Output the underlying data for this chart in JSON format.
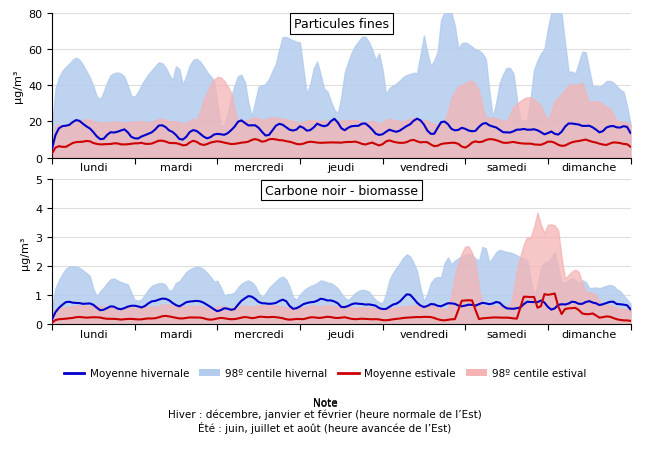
{
  "title1": "Particules fines",
  "title2": "Carbone noir - biomasse",
  "ylabel": "μg/m³",
  "days": [
    "lundi",
    "mardi",
    "mercredi",
    "jeudi",
    "vendredi",
    "samedi",
    "dimanche"
  ],
  "hours_per_day": 24,
  "total_hours": 168,
  "p1_ylim": [
    0,
    80
  ],
  "p1_yticks": [
    0,
    20,
    40,
    60,
    80
  ],
  "p2_ylim": [
    0,
    5
  ],
  "p2_yticks": [
    0,
    1,
    2,
    3,
    4,
    5
  ],
  "color_blue": "#0000cc",
  "color_red": "#cc0000",
  "color_blue_fill": "#b3ccee",
  "color_red_fill": "#f5b3b3",
  "legend_labels": [
    "Moyenne hivernale",
    "98º centile hivernal",
    "Moyenne estivale",
    "98º centile estival"
  ],
  "note_title": "Note",
  "note_line1": "Hiver : décembre, janvier et février (heure normale de l’Est)",
  "note_line2": "Été : juin, juillet et août (heure avancée de l’Est)",
  "background_color": "#ffffff",
  "grid_color": "#dddddd"
}
